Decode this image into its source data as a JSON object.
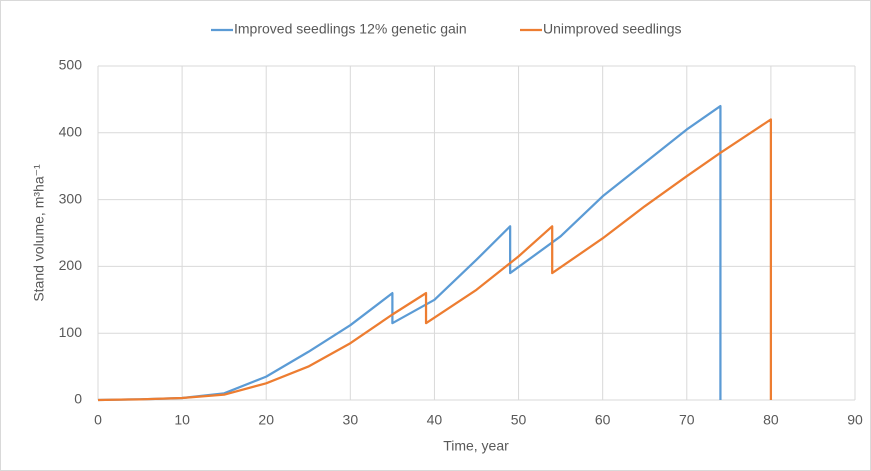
{
  "chart_data": {
    "type": "line",
    "xlabel": "Time, year",
    "ylabel": "Stand volume, m³ha⁻¹",
    "series": [
      {
        "name": "Improved seedlings 12% genetic gain",
        "color": "#5b9bd5",
        "x": [
          0,
          5,
          10,
          15,
          20,
          25,
          30,
          35,
          35,
          40,
          45,
          49,
          49,
          55,
          60,
          65,
          70,
          74,
          74
        ],
        "values": [
          0,
          1,
          3,
          10,
          35,
          72,
          112,
          160,
          115,
          150,
          210,
          260,
          190,
          245,
          305,
          355,
          405,
          440,
          0
        ]
      },
      {
        "name": "Unimproved seedlings",
        "color": "#ed7d31",
        "x": [
          0,
          5,
          10,
          15,
          20,
          25,
          30,
          35,
          39,
          39,
          45,
          50,
          54,
          54,
          60,
          65,
          70,
          74,
          80,
          80
        ],
        "values": [
          0,
          1,
          3,
          8,
          25,
          50,
          85,
          128,
          160,
          115,
          165,
          215,
          260,
          190,
          242,
          290,
          335,
          370,
          420,
          0
        ]
      }
    ],
    "xlim": [
      0,
      90
    ],
    "xticks": [
      0,
      10,
      20,
      30,
      40,
      50,
      60,
      70,
      80,
      90
    ],
    "ylim": [
      0,
      500
    ],
    "yticks": [
      0,
      100,
      200,
      300,
      400,
      500
    ],
    "grid": true,
    "legend": "top"
  }
}
